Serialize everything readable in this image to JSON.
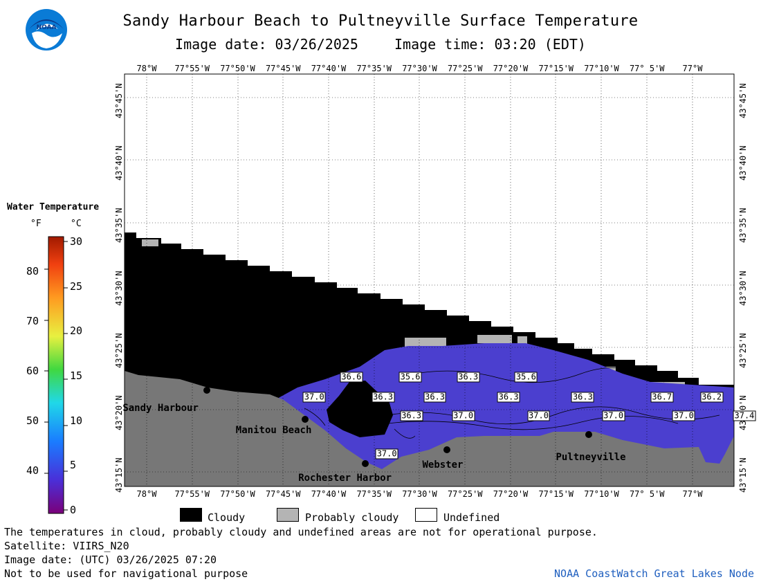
{
  "header": {
    "title": "Sandy Harbour Beach to Pultneyville Surface Temperature",
    "image_date": "Image date: 03/26/2025",
    "image_time": "Image time: 03:20 (EDT)"
  },
  "logo": {
    "icon": "noaa-logo-icon",
    "text": "NOAA"
  },
  "map": {
    "lon_labels": [
      "78°W",
      "77°55'W",
      "77°50'W",
      "77°45'W",
      "77°40'W",
      "77°35'W",
      "77°30'W",
      "77°25'W",
      "77°20'W",
      "77°15'W",
      "77°10'W",
      "77° 5'W",
      "77°W"
    ],
    "lat_labels": [
      "43°45'N",
      "43°40'N",
      "43°35'N",
      "43°30'N",
      "43°25'N",
      "43°20'N",
      "43°15'N"
    ],
    "places": [
      {
        "name": "Sandy Harbour",
        "lon": -77.94,
        "lat": 43.348
      },
      {
        "name": "Manitou Beach",
        "lon": -77.71,
        "lat": 43.322
      },
      {
        "name": "Rochester Harbor",
        "lon": -77.565,
        "lat": 43.258
      },
      {
        "name": "Webster",
        "lon": -77.462,
        "lat": 43.272
      },
      {
        "name": "Pultneyville",
        "lon": -77.187,
        "lat": 43.282
      }
    ],
    "temperature_labels": [
      {
        "value": "36.6",
        "lon": -77.625,
        "lat": 43.377
      },
      {
        "value": "35.6",
        "lon": -77.517,
        "lat": 43.377
      },
      {
        "value": "36.3",
        "lon": -77.411,
        "lat": 43.377
      },
      {
        "value": "35.6",
        "lon": -77.305,
        "lat": 43.377
      },
      {
        "value": "37.0",
        "lon": -77.693,
        "lat": 43.35
      },
      {
        "value": "36.3",
        "lon": -77.567,
        "lat": 43.35
      },
      {
        "value": "36.3",
        "lon": -77.472,
        "lat": 43.35
      },
      {
        "value": "36.3",
        "lon": -77.337,
        "lat": 43.35
      },
      {
        "value": "36.3",
        "lon": -77.201,
        "lat": 43.35
      },
      {
        "value": "36.7",
        "lon": -77.056,
        "lat": 43.35
      },
      {
        "value": "36.2",
        "lon": -76.965,
        "lat": 43.35
      },
      {
        "value": "36.3",
        "lon": -77.515,
        "lat": 43.325
      },
      {
        "value": "37.0",
        "lon": -77.42,
        "lat": 43.325
      },
      {
        "value": "37.0",
        "lon": -77.282,
        "lat": 43.325
      },
      {
        "value": "37.0",
        "lon": -77.145,
        "lat": 43.325
      },
      {
        "value": "37.0",
        "lon": -77.016,
        "lat": 43.325
      },
      {
        "value": "37.4",
        "lon": -76.905,
        "lat": 43.325
      },
      {
        "value": "37.0",
        "lon": -77.56,
        "lat": 43.274
      }
    ]
  },
  "legend": {
    "title": "Water Temperature",
    "unit_f": "°F",
    "unit_c": "°C",
    "f_ticks": [
      "80",
      "70",
      "60",
      "50",
      "40"
    ],
    "c_ticks": [
      "30",
      "25",
      "20",
      "15",
      "10",
      "5",
      "0"
    ]
  },
  "key": [
    {
      "label": "Cloudy",
      "color": "#000000"
    },
    {
      "label": "Probably cloudy",
      "color": "#b4b4b4"
    },
    {
      "label": "Undefined",
      "color": "#ffffff"
    }
  ],
  "footer": {
    "note": "The temperatures in cloud, probably cloudy and undefined areas are not for operational purpose.",
    "satellite": "Satellite: VIIRS_N20",
    "utc_date": "Image date: (UTC) 03/26/2025  07:20",
    "nav": "Not to be used for navigational purpose",
    "credit": "NOAA CoastWatch Great Lakes Node"
  },
  "colors": {
    "water": "#4b3fcf",
    "land": "#777777",
    "cloud": "#000000",
    "probably_cloudy": "#b4b4b4"
  }
}
